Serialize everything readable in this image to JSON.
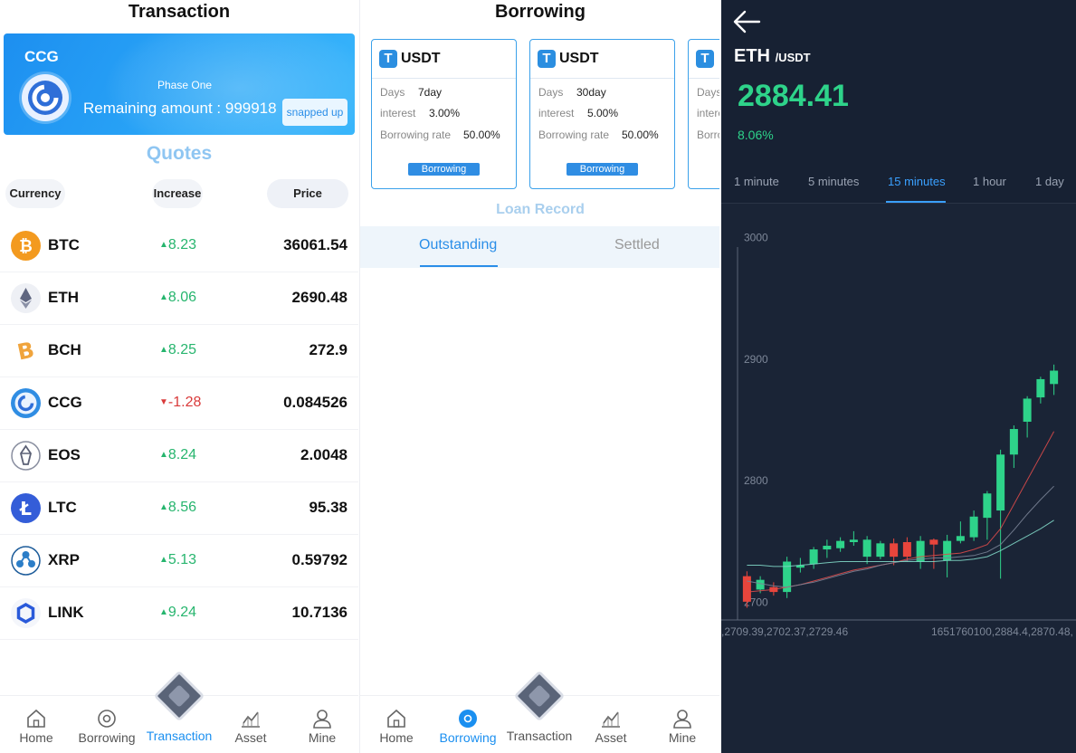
{
  "transaction": {
    "title": "Transaction",
    "banner": {
      "symbol": "CCG",
      "phase": "Phase One",
      "remaining": "Remaining amount : 999918",
      "button": "snapped up"
    },
    "quotes_title": "Quotes",
    "headers": {
      "currency": "Currency",
      "increase": "Increase",
      "price": "Price"
    },
    "rows": [
      {
        "name": "BTC",
        "change": "8.23",
        "dir": "up",
        "price": "36061.54",
        "icon": "btc-icon"
      },
      {
        "name": "ETH",
        "change": "8.06",
        "dir": "up",
        "price": "2690.48",
        "icon": "eth-icon"
      },
      {
        "name": "BCH",
        "change": "8.25",
        "dir": "up",
        "price": "272.9",
        "icon": "bch-icon"
      },
      {
        "name": "CCG",
        "change": "-1.28",
        "dir": "down",
        "price": "0.084526",
        "icon": "ccg-icon"
      },
      {
        "name": "EOS",
        "change": "8.24",
        "dir": "up",
        "price": "2.0048",
        "icon": "eos-icon"
      },
      {
        "name": "LTC",
        "change": "8.56",
        "dir": "up",
        "price": "95.38",
        "icon": "ltc-icon"
      },
      {
        "name": "XRP",
        "change": "5.13",
        "dir": "up",
        "price": "0.59792",
        "icon": "xrp-icon"
      },
      {
        "name": "LINK",
        "change": "9.24",
        "dir": "up",
        "price": "10.7136",
        "icon": "link-icon"
      }
    ]
  },
  "nav": {
    "home": "Home",
    "borrowing": "Borrowing",
    "transaction": "Transaction",
    "asset": "Asset",
    "mine": "Mine"
  },
  "borrowing": {
    "title": "Borrowing",
    "cards": [
      {
        "currency": "USDT",
        "days_label": "Days",
        "days": "7day",
        "interest_label": "interest",
        "interest": "3.00%",
        "rate_label": "Borrowing rate",
        "rate": "50.00%",
        "button": "Borrowing"
      },
      {
        "currency": "USDT",
        "days_label": "Days",
        "days": "30day",
        "interest_label": "interest",
        "interest": "5.00%",
        "rate_label": "Borrowing rate",
        "rate": "50.00%",
        "button": "Borrowing"
      },
      {
        "currency": "USDT",
        "days_label": "Days",
        "days": "",
        "interest_label": "intere",
        "interest": "",
        "rate_label": "Borro",
        "rate": "",
        "button": ""
      }
    ],
    "loan_record": "Loan Record",
    "tabs": [
      "Outstanding",
      "Settled"
    ]
  },
  "chart_panel": {
    "pair": "ETH",
    "quote": "/USDT",
    "price": "2884.41",
    "change": "8.06%",
    "timeframes": [
      "1 minute",
      "5 minutes",
      "15 minutes",
      "1 hour",
      "1 day"
    ],
    "active_timeframe": "15 minutes",
    "colors": {
      "up": "#2ed38a",
      "down": "#e8453c",
      "accent": "#3aa0ff"
    }
  },
  "chart_data": {
    "type": "candlestick",
    "ylim": [
      2690,
      3010
    ],
    "yticks": [
      3000,
      2900,
      2800,
      2700
    ],
    "footer_left": ",2709.39,2702.37,2729.46",
    "footer_right": "1651760100,2884.4,2870.48,",
    "candles": [
      {
        "o": 2726,
        "c": 2705,
        "h": 2730,
        "l": 2700
      },
      {
        "o": 2715,
        "c": 2723,
        "h": 2726,
        "l": 2712
      },
      {
        "o": 2717,
        "c": 2713,
        "h": 2721,
        "l": 2710
      },
      {
        "o": 2713,
        "c": 2738,
        "h": 2742,
        "l": 2708
      },
      {
        "o": 2733,
        "c": 2735,
        "h": 2741,
        "l": 2729
      },
      {
        "o": 2736,
        "c": 2748,
        "h": 2750,
        "l": 2732
      },
      {
        "o": 2748,
        "c": 2751,
        "h": 2756,
        "l": 2741
      },
      {
        "o": 2749,
        "c": 2755,
        "h": 2758,
        "l": 2746
      },
      {
        "o": 2754,
        "c": 2756,
        "h": 2763,
        "l": 2751
      },
      {
        "o": 2742,
        "c": 2756,
        "h": 2759,
        "l": 2736
      },
      {
        "o": 2742,
        "c": 2753,
        "h": 2755,
        "l": 2740
      },
      {
        "o": 2753,
        "c": 2742,
        "h": 2757,
        "l": 2735
      },
      {
        "o": 2754,
        "c": 2742,
        "h": 2758,
        "l": 2738
      },
      {
        "o": 2738,
        "c": 2755,
        "h": 2759,
        "l": 2732
      },
      {
        "o": 2756,
        "c": 2752,
        "h": 2757,
        "l": 2732
      },
      {
        "o": 2739,
        "c": 2755,
        "h": 2760,
        "l": 2725
      },
      {
        "o": 2755,
        "c": 2759,
        "h": 2771,
        "l": 2753
      },
      {
        "o": 2758,
        "c": 2775,
        "h": 2780,
        "l": 2755
      },
      {
        "o": 2774,
        "c": 2794,
        "h": 2796,
        "l": 2756
      },
      {
        "o": 2780,
        "c": 2826,
        "h": 2830,
        "l": 2724
      },
      {
        "o": 2826,
        "c": 2847,
        "h": 2850,
        "l": 2815
      },
      {
        "o": 2853,
        "c": 2872,
        "h": 2874,
        "l": 2840
      },
      {
        "o": 2873,
        "c": 2888,
        "h": 2890,
        "l": 2868
      },
      {
        "o": 2884,
        "c": 2895,
        "h": 2900,
        "l": 2875
      }
    ],
    "ma_lines": [
      {
        "color": "#d94a4a",
        "values": [
          2713,
          2714,
          2715,
          2717,
          2719,
          2722,
          2725,
          2728,
          2731,
          2733,
          2735,
          2737,
          2740,
          2742,
          2743,
          2744,
          2745,
          2748,
          2752,
          2765,
          2785,
          2805,
          2825,
          2845
        ]
      },
      {
        "color": "#7a8396",
        "values": [
          2722,
          2720,
          2718,
          2717,
          2719,
          2721,
          2724,
          2727,
          2730,
          2732,
          2735,
          2737,
          2739,
          2740,
          2741,
          2741,
          2742,
          2743,
          2746,
          2752,
          2764,
          2777,
          2789,
          2800
        ]
      },
      {
        "color": "#7fd6c5",
        "values": [
          2735,
          2735,
          2734,
          2734,
          2735,
          2736,
          2737,
          2738,
          2738,
          2738,
          2738,
          2738,
          2738,
          2738,
          2738,
          2739,
          2739,
          2740,
          2742,
          2747,
          2753,
          2759,
          2765,
          2772
        ]
      }
    ]
  }
}
